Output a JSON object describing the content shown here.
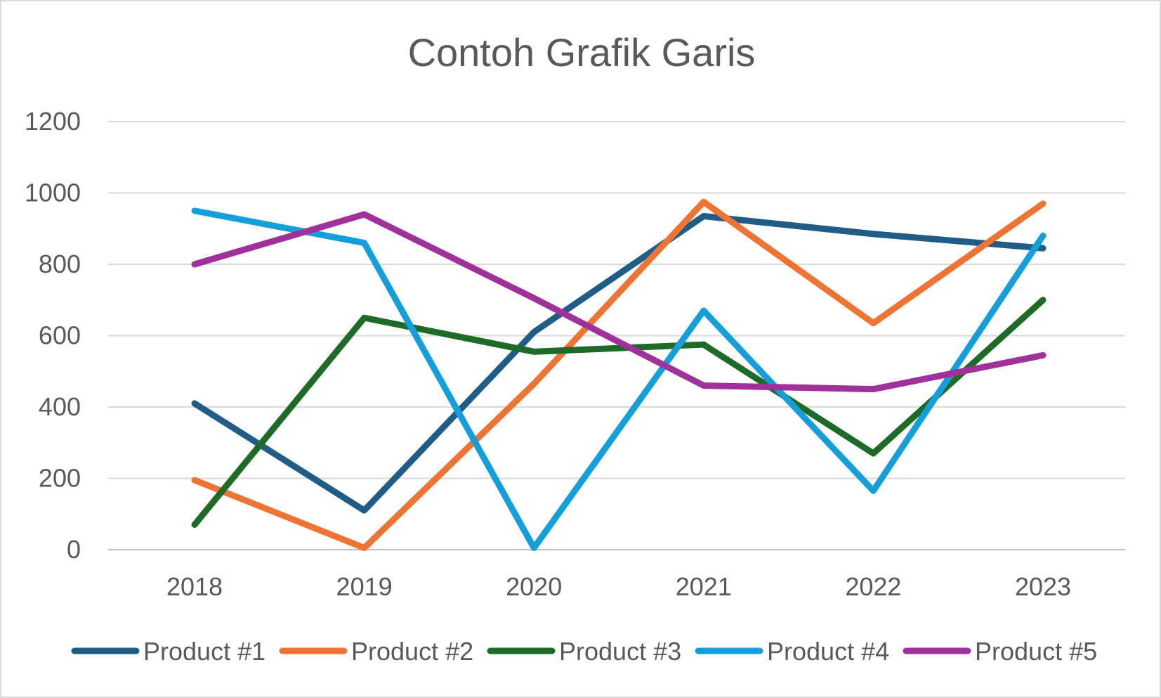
{
  "chart_data": {
    "type": "line",
    "title": "Contoh Grafik Garis",
    "xlabel": "",
    "ylabel": "",
    "categories": [
      "2018",
      "2019",
      "2020",
      "2021",
      "2022",
      "2023"
    ],
    "ylim": [
      0,
      1200
    ],
    "yticks": [
      "0",
      "200",
      "400",
      "600",
      "800",
      "1000",
      "1200"
    ],
    "grid": "horizontal",
    "legend_position": "bottom",
    "series": [
      {
        "name": "Product #1",
        "color": "#1f5c86",
        "values": [
          410,
          110,
          610,
          935,
          885,
          845
        ]
      },
      {
        "name": "Product #2",
        "color": "#ed7432",
        "values": [
          195,
          5,
          465,
          975,
          635,
          970
        ]
      },
      {
        "name": "Product #3",
        "color": "#1d6b26",
        "values": [
          70,
          650,
          555,
          575,
          270,
          700
        ]
      },
      {
        "name": "Product #4",
        "color": "#159fda",
        "values": [
          950,
          860,
          5,
          670,
          165,
          880
        ]
      },
      {
        "name": "Product #5",
        "color": "#a0309a",
        "values": [
          800,
          940,
          705,
          460,
          450,
          545
        ]
      }
    ]
  }
}
